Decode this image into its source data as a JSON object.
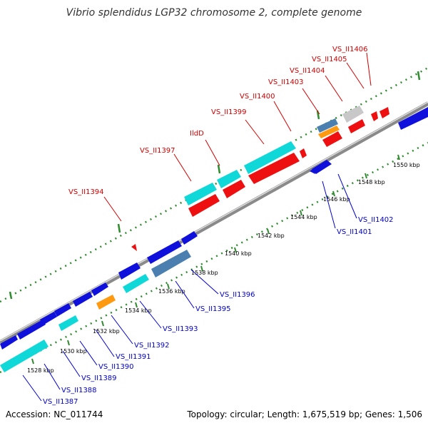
{
  "title": "Vibrio splendidus LGP32 chromosome 2, complete genome",
  "footer": {
    "accession": "Accession: NC_011744",
    "summary": "Topology: circular; Length: 1,675,519 bp; Genes: 1,506"
  },
  "colors": {
    "backbone": "#8a8a8a",
    "dots": "#2e8b2e",
    "label_top": "#d00000",
    "label_bottom": "#0000cc",
    "blue": "#1010dd",
    "cyan": "#10d8d8",
    "red": "#ee1010",
    "orange": "#ff9910",
    "steel": "#4a7fb0",
    "gray": "#c8c8c8"
  },
  "scale_labels": [
    "1528 kbp",
    "1530 kbp",
    "1532 kbp",
    "1534 kbp",
    "1536 kbp",
    "1538 kbp",
    "1540 kbp",
    "1542 kbp",
    "1544 kbp",
    "1546 kbp",
    "1548 kbp",
    "1550 kbp"
  ],
  "gene_labels_top": [
    "VS_II1394",
    "VS_II1397",
    "IldD",
    "VS_II1399",
    "VS_II1400",
    "VS_II1403",
    "VS_II1404",
    "VS_II1405",
    "VS_II1406"
  ],
  "gene_labels_bottom": [
    "VS_II1387",
    "VS_II1388",
    "VS_II1389",
    "VS_II1390",
    "VS_II1391",
    "VS_II1392",
    "VS_II1393",
    "VS_II1395",
    "VS_II1396",
    "VS_II1401",
    "VS_II1402"
  ]
}
